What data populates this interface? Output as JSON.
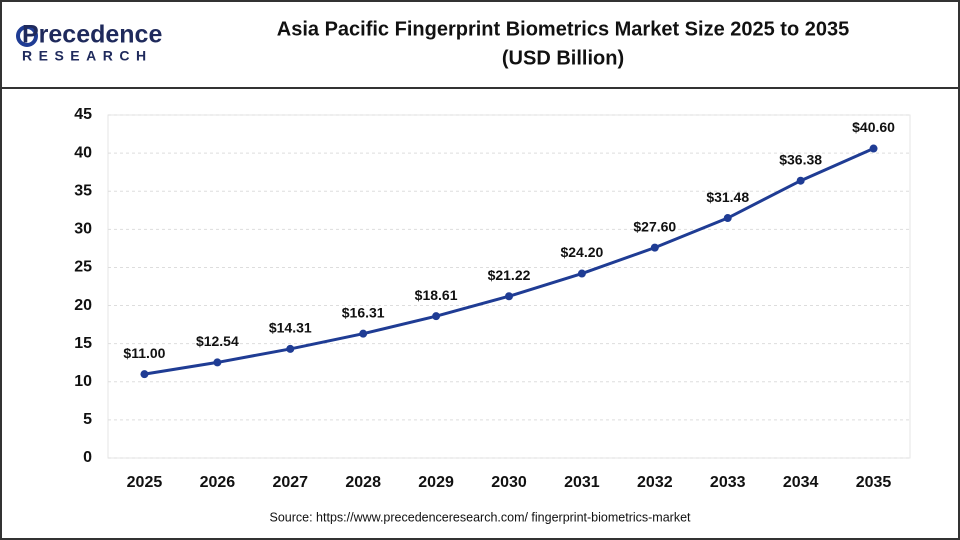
{
  "logo": {
    "name": "Precedence",
    "sub": "RESEARCH"
  },
  "source": "Source: https://www.precedenceresearch.com/ fingerprint-biometrics-market",
  "chart_data": {
    "type": "line",
    "title": "Asia Pacific Fingerprint Biometrics Market Size 2025 to 2035",
    "subtitle": "(USD Billion)",
    "categories": [
      "2025",
      "2026",
      "2027",
      "2028",
      "2029",
      "2030",
      "2031",
      "2032",
      "2033",
      "2034",
      "2035"
    ],
    "values": [
      11.0,
      12.54,
      14.31,
      16.31,
      18.61,
      21.22,
      24.2,
      27.6,
      31.48,
      36.38,
      40.6
    ],
    "value_labels": [
      "$11.00",
      "$12.54",
      "$14.31",
      "$16.31",
      "$18.61",
      "$21.22",
      "$24.20",
      "$27.60",
      "$31.48",
      "$36.38",
      "$40.60"
    ],
    "color": "#1f3c94",
    "ylim": [
      0,
      45
    ],
    "yticks": [
      0,
      5,
      10,
      15,
      20,
      25,
      30,
      35,
      40,
      45
    ],
    "grid": true
  }
}
